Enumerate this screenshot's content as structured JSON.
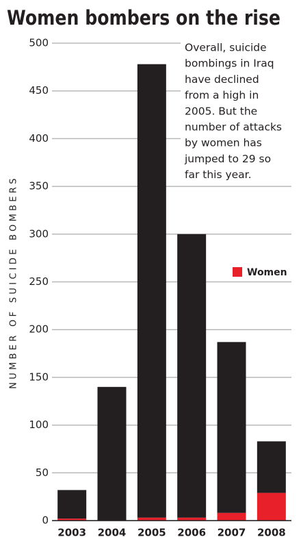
{
  "chart_data": {
    "type": "bar",
    "stacked": true,
    "title": "Women bombers on the rise",
    "annotation": [
      "Overall, suicide",
      "bombings in Iraq",
      "have declined",
      "from a high in",
      "2005. But the",
      "number of attacks",
      "by women has",
      "jumped to 29 so",
      "far this year."
    ],
    "y_label": "NUMBER OF SUICIDE BOMBERS",
    "categories": [
      "2003",
      "2004",
      "2005",
      "2006",
      "2007",
      "2008"
    ],
    "series": [
      {
        "name": "Women",
        "color": "#e8202a",
        "values": [
          2,
          0,
          3,
          3,
          8,
          29
        ]
      },
      {
        "color": "#231f20",
        "values": [
          30,
          140,
          475,
          297,
          179,
          54
        ]
      }
    ],
    "ylim": [
      0,
      500
    ],
    "yticks": [
      0,
      50,
      100,
      150,
      200,
      250,
      300,
      350,
      400,
      450,
      500
    ],
    "grid": true,
    "legend": "right"
  }
}
